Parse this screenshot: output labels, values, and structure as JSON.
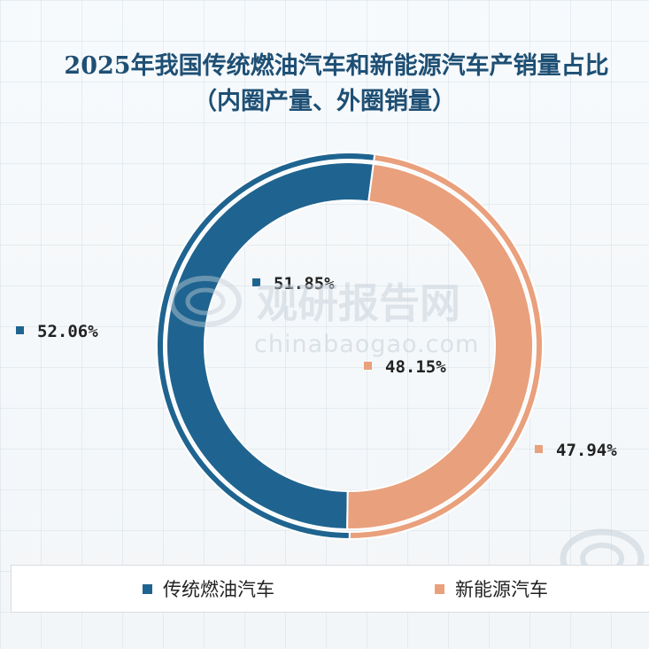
{
  "chart_data": {
    "type": "pie",
    "title": "2025年我国传统燃油汽车和新能源汽车产销量占比",
    "subtitle": "（内圈产量、外圈销量）",
    "categories": [
      "传统燃油汽车",
      "新能源汽车"
    ],
    "series": [
      {
        "name": "产量",
        "ring": "inner",
        "values": [
          51.85,
          48.15
        ],
        "labels": [
          "51.85%",
          "48.15%"
        ]
      },
      {
        "name": "销量",
        "ring": "outer",
        "values": [
          52.06,
          47.94
        ],
        "labels": [
          "52.06%",
          "47.94%"
        ]
      }
    ],
    "colors": [
      "#1f6490",
      "#e9a07c"
    ],
    "legend": [
      {
        "label": "传统燃油汽车",
        "color": "#1f6490"
      },
      {
        "label": "新能源汽车",
        "color": "#e9a07c"
      }
    ],
    "legend_position": "bottom"
  },
  "watermark": {
    "brand": "观研报告网",
    "site": "chinabaogao.com"
  }
}
